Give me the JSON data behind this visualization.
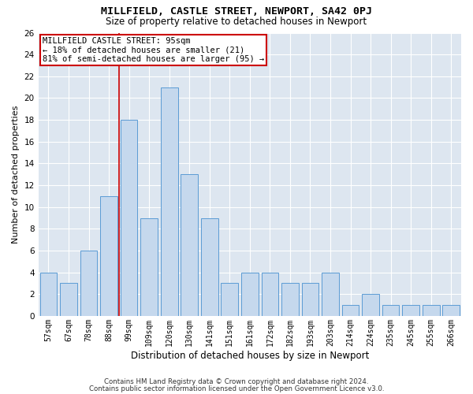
{
  "title": "MILLFIELD, CASTLE STREET, NEWPORT, SA42 0PJ",
  "subtitle": "Size of property relative to detached houses in Newport",
  "xlabel": "Distribution of detached houses by size in Newport",
  "ylabel": "Number of detached properties",
  "bar_color": "#c5d8ed",
  "bar_edge_color": "#5b9bd5",
  "background_color": "#dde6f0",
  "grid_color": "#ffffff",
  "categories": [
    "57sqm",
    "67sqm",
    "78sqm",
    "88sqm",
    "99sqm",
    "109sqm",
    "120sqm",
    "130sqm",
    "141sqm",
    "151sqm",
    "161sqm",
    "172sqm",
    "182sqm",
    "193sqm",
    "203sqm",
    "214sqm",
    "224sqm",
    "235sqm",
    "245sqm",
    "255sqm",
    "266sqm"
  ],
  "values": [
    4,
    3,
    6,
    11,
    18,
    9,
    21,
    13,
    9,
    3,
    4,
    4,
    3,
    3,
    4,
    1,
    2,
    1,
    1,
    1,
    1
  ],
  "ylim": [
    0,
    26
  ],
  "yticks": [
    0,
    2,
    4,
    6,
    8,
    10,
    12,
    14,
    16,
    18,
    20,
    22,
    24,
    26
  ],
  "property_bin_index": 4,
  "annotation_text": "MILLFIELD CASTLE STREET: 95sqm\n← 18% of detached houses are smaller (21)\n81% of semi-detached houses are larger (95) →",
  "vline_color": "#cc0000",
  "annotation_box_edge": "#cc0000",
  "footer_line1": "Contains HM Land Registry data © Crown copyright and database right 2024.",
  "footer_line2": "Contains public sector information licensed under the Open Government Licence v3.0."
}
